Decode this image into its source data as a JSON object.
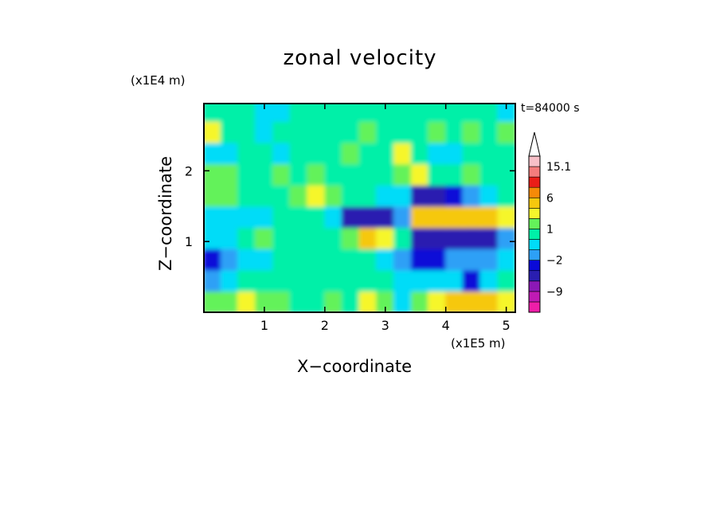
{
  "chart_data": {
    "type": "heatmap",
    "title": "zonal velocity",
    "xlabel": "X−coordinate",
    "ylabel": "Z−coordinate",
    "x_scale_label": "(x1E5 m)",
    "y_scale_label": "(x1E4 m)",
    "time_label": "t=84000 s",
    "xlim": [
      0,
      5.15
    ],
    "ylim": [
      0,
      2.95
    ],
    "x_ticks": [
      1,
      2,
      3,
      4,
      5
    ],
    "y_ticks": [
      1,
      2
    ],
    "colorbar": {
      "extend": "max",
      "levels": [
        -15,
        -12,
        -9,
        -6,
        -3,
        -2,
        -1,
        0,
        1,
        2,
        3,
        6,
        9,
        12,
        15.1
      ],
      "labels": [
        {
          "value": 15.1,
          "text": "15.1"
        },
        {
          "value": 6,
          "text": "6"
        },
        {
          "value": 1,
          "text": "1"
        },
        {
          "value": -2,
          "text": "−2"
        },
        {
          "value": -9,
          "text": "−9"
        }
      ],
      "colors": [
        "#ee1ea8",
        "#c01ab4",
        "#8c18b6",
        "#2a1eb0",
        "#0a0ad8",
        "#2da0f6",
        "#00dcf8",
        "#00f0a8",
        "#64f25a",
        "#f6f62c",
        "#f6c80e",
        "#f68a08",
        "#ea1e18",
        "#f47c7c",
        "#f8c0c8",
        "#ffffff"
      ]
    },
    "field": {
      "rows": 10,
      "cols": 18,
      "row_z_centers": [
        0.15,
        0.45,
        0.75,
        1.05,
        1.35,
        1.65,
        1.95,
        2.25,
        2.55,
        2.85
      ],
      "col_x_centers": [
        0.14,
        0.43,
        0.71,
        1.0,
        1.29,
        1.57,
        1.86,
        2.15,
        2.43,
        2.72,
        3.0,
        3.29,
        3.58,
        3.86,
        4.15,
        4.43,
        4.72,
        5.01
      ],
      "values": [
        [
          1.2,
          1.5,
          2.2,
          1.8,
          1.0,
          0.5,
          0.3,
          1.5,
          0.2,
          2.5,
          1.0,
          -0.5,
          1.0,
          2.2,
          3.0,
          4.5,
          3.0,
          2.0
        ],
        [
          -1.5,
          -1.0,
          0.5,
          0.8,
          0.5,
          0.2,
          0.5,
          0.8,
          0.5,
          0.5,
          0.5,
          -0.5,
          -0.6,
          -0.5,
          -0.4,
          -2.5,
          -1.0,
          0.5
        ],
        [
          -3.0,
          -1.5,
          -0.8,
          -0.5,
          0.2,
          0.5,
          0.5,
          0.5,
          0.5,
          0.4,
          -0.2,
          -1.8,
          -2.5,
          -2.2,
          -1.5,
          -2.0,
          -1.5,
          -0.8
        ],
        [
          -1.0,
          -0.5,
          0.8,
          1.0,
          0.5,
          0.6,
          0.8,
          0.2,
          1.5,
          3.0,
          2.2,
          0.6,
          -3.5,
          -4.5,
          -4.5,
          -5.0,
          -3.5,
          -1.8
        ],
        [
          -0.5,
          -0.5,
          -0.6,
          -0.5,
          0.4,
          0.5,
          0.3,
          -0.2,
          -4.5,
          -5.2,
          -4.5,
          -1.2,
          4.0,
          4.5,
          4.8,
          4.0,
          3.5,
          2.5
        ],
        [
          1.2,
          1.5,
          0.5,
          0.4,
          0.2,
          1.2,
          2.2,
          1.5,
          0.6,
          0.5,
          -0.5,
          -0.6,
          -4.5,
          -3.5,
          -2.5,
          -1.5,
          -0.6,
          0.5
        ],
        [
          1.0,
          1.5,
          0.5,
          0.6,
          1.5,
          0.5,
          1.2,
          0.2,
          0.8,
          0.5,
          0.6,
          1.5,
          2.2,
          0.5,
          0.3,
          1.0,
          0.5,
          0.3
        ],
        [
          -0.5,
          -0.2,
          0.8,
          0.3,
          -0.5,
          0.5,
          0.3,
          0.5,
          1.5,
          0.5,
          0.5,
          2.5,
          0.6,
          -0.5,
          -0.2,
          0.5,
          0.3,
          0.5
        ],
        [
          2.0,
          0.5,
          0.6,
          -0.2,
          0.6,
          0.8,
          0.4,
          0.5,
          0.3,
          1.5,
          0.5,
          0.5,
          0.4,
          1.2,
          0.5,
          1.5,
          0.5,
          1.0
        ],
        [
          0.6,
          0.5,
          0.4,
          -0.5,
          -0.6,
          0.5,
          0.6,
          0.5,
          0.6,
          0.6,
          0.5,
          0.5,
          0.5,
          0.5,
          0.5,
          0.5,
          0.6,
          -0.5
        ]
      ]
    }
  }
}
